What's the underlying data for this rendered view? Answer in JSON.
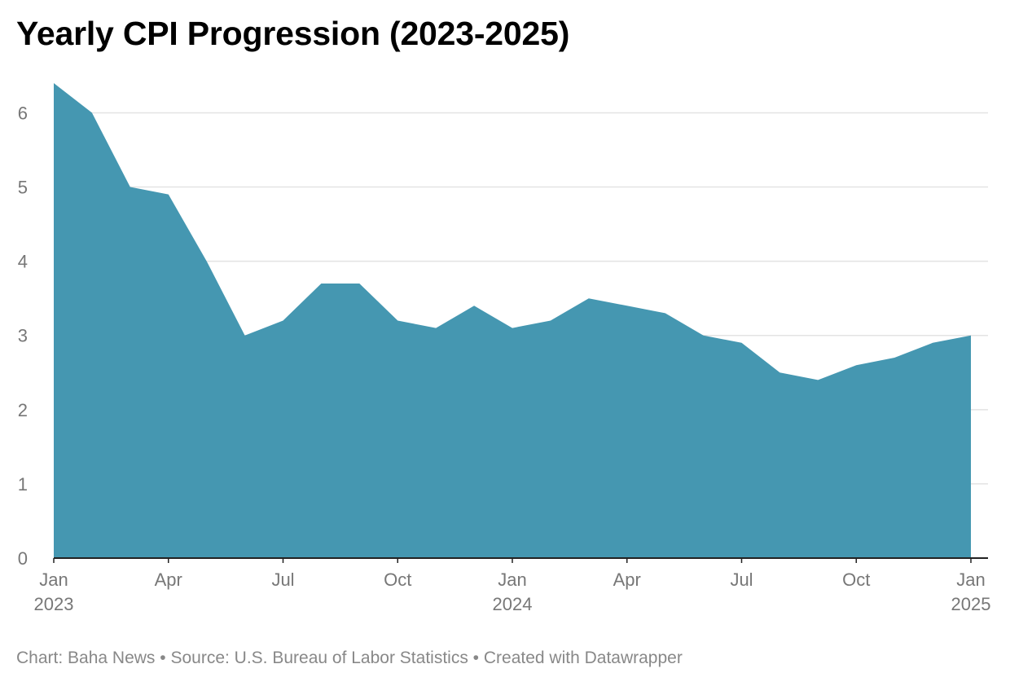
{
  "title": "Yearly CPI Progression (2023-2025)",
  "footer": {
    "chart_by": "Chart: Baha News",
    "source": "Source: U.S. Bureau of Labor Statistics",
    "created_with": "Created with Datawrapper",
    "separator": "•"
  },
  "colors": {
    "area": "#4597b1",
    "grid": "#e3e3e3",
    "baseline": "#222222",
    "tick_text": "#777777"
  },
  "chart_data": {
    "type": "area",
    "title": "Yearly CPI Progression (2023-2025)",
    "xlabel": "",
    "ylabel": "",
    "ylim": [
      0,
      6.4
    ],
    "grid": true,
    "y_ticks": [
      0,
      1,
      2,
      3,
      4,
      5,
      6
    ],
    "x_ticks": [
      {
        "month": "2023-01",
        "label": "Jan",
        "sublabel": "2023"
      },
      {
        "month": "2023-04",
        "label": "Apr",
        "sublabel": ""
      },
      {
        "month": "2023-07",
        "label": "Jul",
        "sublabel": ""
      },
      {
        "month": "2023-10",
        "label": "Oct",
        "sublabel": ""
      },
      {
        "month": "2024-01",
        "label": "Jan",
        "sublabel": "2024"
      },
      {
        "month": "2024-04",
        "label": "Apr",
        "sublabel": ""
      },
      {
        "month": "2024-07",
        "label": "Jul",
        "sublabel": ""
      },
      {
        "month": "2024-10",
        "label": "Oct",
        "sublabel": ""
      },
      {
        "month": "2025-01",
        "label": "Jan",
        "sublabel": "2025"
      }
    ],
    "x": [
      "2023-01",
      "2023-02",
      "2023-03",
      "2023-04",
      "2023-05",
      "2023-06",
      "2023-07",
      "2023-08",
      "2023-09",
      "2023-10",
      "2023-11",
      "2023-12",
      "2024-01",
      "2024-02",
      "2024-03",
      "2024-04",
      "2024-05",
      "2024-06",
      "2024-07",
      "2024-08",
      "2024-09",
      "2024-10",
      "2024-11",
      "2024-12",
      "2025-01"
    ],
    "values": [
      6.4,
      6.0,
      5.0,
      4.9,
      4.0,
      3.0,
      3.2,
      3.7,
      3.7,
      3.2,
      3.1,
      3.4,
      3.1,
      3.2,
      3.5,
      3.4,
      3.3,
      3.0,
      2.9,
      2.5,
      2.4,
      2.6,
      2.7,
      2.9,
      3.0
    ]
  }
}
